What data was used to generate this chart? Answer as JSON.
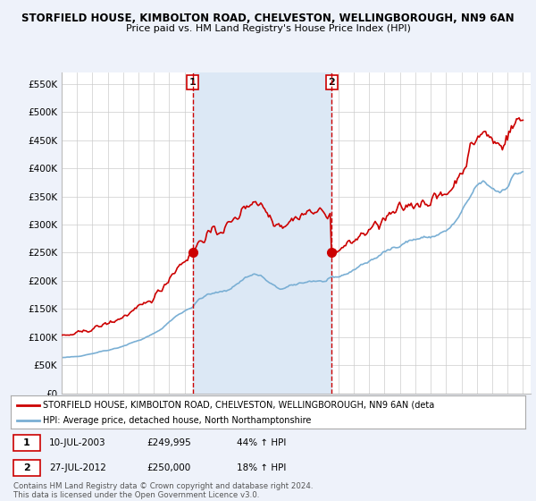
{
  "title_line1": "STORFIELD HOUSE, KIMBOLTON ROAD, CHELVESTON, WELLINGBOROUGH, NN9 6AN",
  "title_line2": "Price paid vs. HM Land Registry's House Price Index (HPI)",
  "ylabel_ticks": [
    "£0",
    "£50K",
    "£100K",
    "£150K",
    "£200K",
    "£250K",
    "£300K",
    "£350K",
    "£400K",
    "£450K",
    "£500K",
    "£550K"
  ],
  "ytick_values": [
    0,
    50000,
    100000,
    150000,
    200000,
    250000,
    300000,
    350000,
    400000,
    450000,
    500000,
    550000
  ],
  "ylim": [
    0,
    570000
  ],
  "sale1_date": "10-JUL-2003",
  "sale1_price": 249995,
  "sale1_hpi": "44% ↑ HPI",
  "sale1_x": 2003.53,
  "sale2_date": "27-JUL-2012",
  "sale2_price": 250000,
  "sale2_hpi": "18% ↑ HPI",
  "sale2_x": 2012.57,
  "legend_label1": "STORFIELD HOUSE, KIMBOLTON ROAD, CHELVESTON, WELLINGBOROUGH, NN9 6AN (deta",
  "legend_label2": "HPI: Average price, detached house, North Northamptonshire",
  "footnote": "Contains HM Land Registry data © Crown copyright and database right 2024.\nThis data is licensed under the Open Government Licence v3.0.",
  "bg_color": "#eef2fa",
  "plot_bg_color": "#ffffff",
  "shade_color": "#dce8f5",
  "red_line_color": "#cc0000",
  "blue_line_color": "#7aafd4"
}
